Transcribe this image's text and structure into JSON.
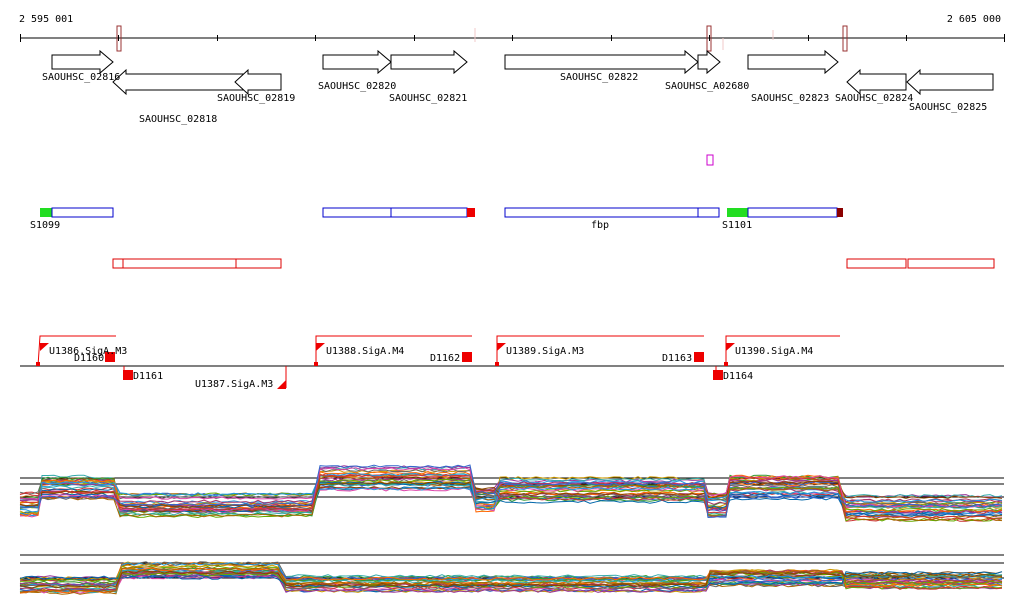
{
  "ruler": {
    "start_label": "2 595 001",
    "end_label": "2 605 000"
  },
  "colors": {
    "gene_stroke": "#000000",
    "blue_feature": "#0000cc",
    "red_feature": "#dd0000",
    "green_marker": "#22dd22",
    "red_marker": "#ee0000",
    "darkred_marker": "#8b0000",
    "magenta_marker": "#cc00cc",
    "tick_mark": "#993333"
  },
  "genes": [
    {
      "id": "SAOUHSC_02816",
      "strand": "+"
    },
    {
      "id": "SAOUHSC_02818",
      "strand": "-"
    },
    {
      "id": "SAOUHSC_02819",
      "strand": "-"
    },
    {
      "id": "SAOUHSC_02820",
      "strand": "+"
    },
    {
      "id": "SAOUHSC_02821",
      "strand": "+"
    },
    {
      "id": "SAOUHSC_02822",
      "strand": "+"
    },
    {
      "id": "SAOUHSC_A02680",
      "strand": "+"
    },
    {
      "id": "SAOUHSC_02823",
      "strand": "+"
    },
    {
      "id": "SAOUHSC_02824",
      "strand": "-"
    },
    {
      "id": "SAOUHSC_02825",
      "strand": "-"
    }
  ],
  "blue_features": [
    {
      "label": "S1099"
    },
    {
      "label": ""
    },
    {
      "label": "fbp"
    },
    {
      "label": "S1101"
    }
  ],
  "red_features": [
    {
      "label": ""
    },
    {
      "label": ""
    }
  ],
  "promoters": [
    {
      "label": "U1386.SigA.M3"
    },
    {
      "label": "U1387.SigA.M3"
    },
    {
      "label": "U1388.SigA.M4"
    },
    {
      "label": "U1389.SigA.M3"
    },
    {
      "label": "U1390.SigA.M4"
    }
  ],
  "terminators": [
    {
      "label": "D1160"
    },
    {
      "label": "D1161"
    },
    {
      "label": "D1162"
    },
    {
      "label": "D1163"
    },
    {
      "label": "D1164"
    }
  ]
}
